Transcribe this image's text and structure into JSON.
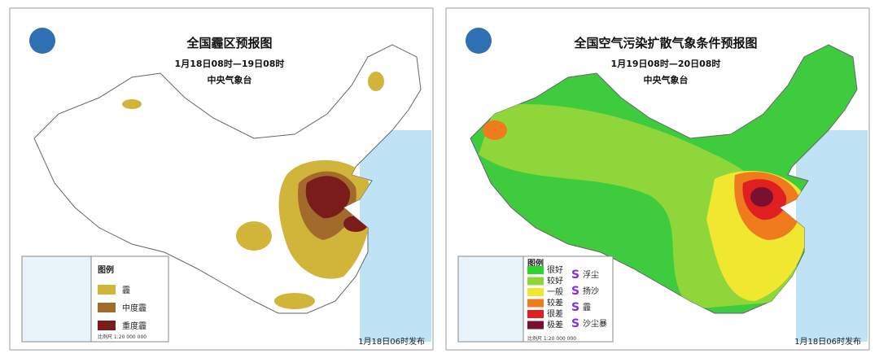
{
  "left_map": {
    "title": "全国霾区预报图",
    "period": "1月18日08时—19日08时",
    "issuer": "中央气象台",
    "legend": {
      "title": "图例",
      "items": [
        "霾",
        "中度霾",
        "重度霾"
      ]
    },
    "scale": "比例尺 1:20 000 000",
    "release": "1月18日06时发布"
  },
  "right_map": {
    "title": "全国空气污染扩散气象条件预报图",
    "period": "1月19日08时—20日08时",
    "issuer": "中央气象台",
    "legend": {
      "title": "图例",
      "levels": [
        "很好",
        "较好",
        "一般",
        "较差",
        "很差",
        "极差"
      ],
      "phenomena": [
        "浮尘",
        "扬沙",
        "霾",
        "沙尘暴"
      ]
    },
    "scale": "比例尺 1:20 000 000",
    "release": "1月18日06时发布"
  }
}
